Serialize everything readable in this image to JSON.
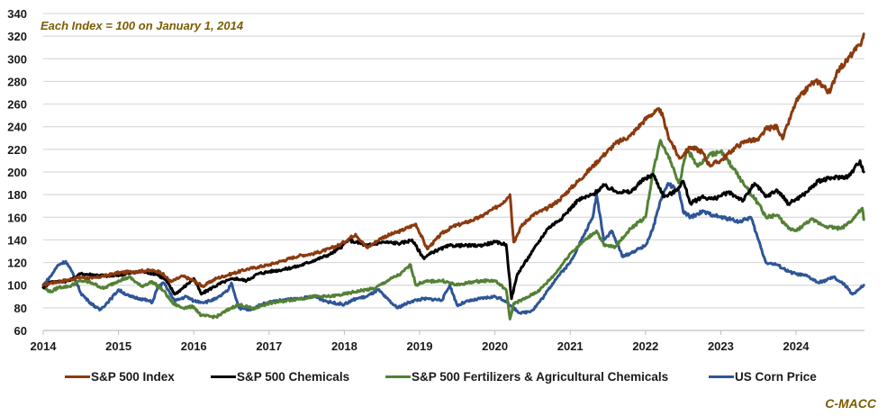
{
  "chart_data": {
    "type": "line",
    "title": "",
    "annotation": "Each Index = 100 on January 1, 2014",
    "source_label": "C-MACC",
    "xlabel": "",
    "ylabel": "",
    "ylim": [
      60,
      340
    ],
    "yticks": [
      60,
      80,
      100,
      120,
      140,
      160,
      180,
      200,
      220,
      240,
      260,
      280,
      300,
      320,
      340
    ],
    "xlim": [
      2014.0,
      2024.9
    ],
    "xticks": [
      "2014",
      "2015",
      "2016",
      "2017",
      "2018",
      "2019",
      "2020",
      "2021",
      "2022",
      "2023",
      "2024"
    ],
    "grid": "horizontal",
    "legend_position": "bottom",
    "series": [
      {
        "name": "S&P 500 Index",
        "color": "#8B3A0F",
        "x": [
          2014.0,
          2014.1,
          2014.2,
          2014.35,
          2014.5,
          2014.65,
          2014.8,
          2015.0,
          2015.2,
          2015.4,
          2015.55,
          2015.7,
          2015.85,
          2016.0,
          2016.12,
          2016.3,
          2016.5,
          2016.7,
          2016.85,
          2017.0,
          2017.2,
          2017.4,
          2017.6,
          2017.8,
          2017.95,
          2018.08,
          2018.15,
          2018.3,
          2018.5,
          2018.75,
          2018.95,
          2019.1,
          2019.3,
          2019.45,
          2019.6,
          2019.8,
          2020.0,
          2020.12,
          2020.2,
          2020.25,
          2020.35,
          2020.5,
          2020.7,
          2020.85,
          2021.0,
          2021.2,
          2021.4,
          2021.6,
          2021.8,
          2021.95,
          2022.05,
          2022.2,
          2022.3,
          2022.45,
          2022.6,
          2022.75,
          2022.85,
          2023.0,
          2023.2,
          2023.35,
          2023.5,
          2023.6,
          2023.75,
          2023.82,
          2024.0,
          2024.2,
          2024.3,
          2024.45,
          2024.55,
          2024.65,
          2024.75,
          2024.85,
          2024.9
        ],
        "values": [
          100,
          102,
          103,
          105,
          107,
          106,
          108,
          111,
          112,
          113,
          112,
          103,
          108,
          104,
          99,
          106,
          110,
          114,
          116,
          118,
          122,
          126,
          128,
          132,
          136,
          142,
          145,
          133,
          142,
          148,
          154,
          132,
          146,
          152,
          155,
          160,
          168,
          174,
          180,
          138,
          152,
          162,
          168,
          175,
          185,
          198,
          212,
          225,
          232,
          243,
          250,
          255,
          232,
          212,
          222,
          218,
          206,
          210,
          222,
          228,
          228,
          238,
          240,
          229,
          262,
          278,
          280,
          270,
          290,
          296,
          305,
          312,
          322
        ]
      },
      {
        "name": "S&P 500 Chemicals",
        "color": "#000000",
        "x": [
          2014.0,
          2014.1,
          2014.2,
          2014.35,
          2014.5,
          2014.7,
          2014.9,
          2015.1,
          2015.3,
          2015.5,
          2015.62,
          2015.75,
          2015.9,
          2016.0,
          2016.1,
          2016.25,
          2016.4,
          2016.55,
          2016.7,
          2016.85,
          2017.0,
          2017.2,
          2017.4,
          2017.6,
          2017.8,
          2017.95,
          2018.05,
          2018.15,
          2018.3,
          2018.5,
          2018.75,
          2018.9,
          2019.05,
          2019.2,
          2019.4,
          2019.6,
          2019.8,
          2020.0,
          2020.15,
          2020.22,
          2020.3,
          2020.5,
          2020.7,
          2020.9,
          2021.1,
          2021.3,
          2021.45,
          2021.6,
          2021.8,
          2021.95,
          2022.1,
          2022.25,
          2022.4,
          2022.5,
          2022.6,
          2022.75,
          2022.9,
          2023.1,
          2023.3,
          2023.45,
          2023.6,
          2023.75,
          2023.9,
          2024.1,
          2024.3,
          2024.5,
          2024.7,
          2024.85,
          2024.9
        ],
        "values": [
          98,
          103,
          103,
          104,
          110,
          109,
          108,
          110,
          112,
          110,
          105,
          92,
          100,
          106,
          92,
          98,
          103,
          106,
          104,
          110,
          112,
          114,
          117,
          122,
          127,
          133,
          140,
          138,
          135,
          138,
          137,
          140,
          124,
          130,
          135,
          135,
          135,
          138,
          136,
          88,
          110,
          130,
          150,
          160,
          175,
          180,
          188,
          183,
          182,
          192,
          198,
          178,
          183,
          192,
          172,
          178,
          176,
          182,
          175,
          190,
          178,
          184,
          172,
          180,
          192,
          195,
          196,
          210,
          200
        ]
      },
      {
        "name": "S&P 500 Fertilizers & Agricultural Chemicals",
        "color": "#538135",
        "x": [
          2014.0,
          2014.1,
          2014.2,
          2014.35,
          2014.5,
          2014.65,
          2014.8,
          2015.0,
          2015.15,
          2015.3,
          2015.45,
          2015.6,
          2015.72,
          2015.85,
          2016.0,
          2016.1,
          2016.3,
          2016.5,
          2016.6,
          2016.8,
          2016.9,
          2017.0,
          2017.2,
          2017.4,
          2017.6,
          2017.8,
          2018.0,
          2018.2,
          2018.4,
          2018.6,
          2018.75,
          2018.88,
          2018.95,
          2019.05,
          2019.3,
          2019.5,
          2019.7,
          2019.9,
          2020.0,
          2020.15,
          2020.2,
          2020.25,
          2020.4,
          2020.6,
          2020.8,
          2021.0,
          2021.2,
          2021.35,
          2021.45,
          2021.6,
          2021.8,
          2022.0,
          2022.1,
          2022.2,
          2022.3,
          2022.45,
          2022.55,
          2022.7,
          2022.85,
          2023.0,
          2023.15,
          2023.3,
          2023.5,
          2023.6,
          2023.75,
          2023.9,
          2024.0,
          2024.2,
          2024.4,
          2024.6,
          2024.75,
          2024.88,
          2024.9
        ],
        "values": [
          98,
          94,
          98,
          99,
          104,
          102,
          97,
          104,
          107,
          99,
          103,
          95,
          84,
          80,
          81,
          73,
          72,
          80,
          83,
          79,
          82,
          84,
          86,
          88,
          90,
          90,
          92,
          95,
          97,
          105,
          110,
          118,
          100,
          103,
          104,
          100,
          103,
          104,
          104,
          96,
          70,
          84,
          88,
          96,
          110,
          128,
          140,
          148,
          135,
          134,
          150,
          160,
          200,
          228,
          215,
          190,
          220,
          205,
          215,
          218,
          205,
          190,
          172,
          160,
          162,
          150,
          148,
          158,
          152,
          150,
          158,
          168,
          158
        ]
      },
      {
        "name": "US Corn Price",
        "color": "#2F5597",
        "x": [
          2014.0,
          2014.1,
          2014.2,
          2014.3,
          2014.38,
          2014.5,
          2014.6,
          2014.75,
          2014.9,
          2015.0,
          2015.15,
          2015.3,
          2015.45,
          2015.52,
          2015.6,
          2015.75,
          2015.9,
          2016.0,
          2016.15,
          2016.3,
          2016.45,
          2016.5,
          2016.6,
          2016.75,
          2016.9,
          2017.0,
          2017.2,
          2017.4,
          2017.6,
          2017.8,
          2018.0,
          2018.15,
          2018.3,
          2018.45,
          2018.55,
          2018.7,
          2018.9,
          2019.05,
          2019.3,
          2019.4,
          2019.5,
          2019.6,
          2019.8,
          2020.0,
          2020.15,
          2020.2,
          2020.35,
          2020.5,
          2020.65,
          2020.8,
          2021.0,
          2021.15,
          2021.3,
          2021.35,
          2021.45,
          2021.55,
          2021.7,
          2021.85,
          2022.0,
          2022.1,
          2022.2,
          2022.3,
          2022.45,
          2022.5,
          2022.6,
          2022.75,
          2022.9,
          2023.0,
          2023.15,
          2023.25,
          2023.4,
          2023.5,
          2023.6,
          2023.75,
          2023.9,
          2024.0,
          2024.15,
          2024.3,
          2024.5,
          2024.65,
          2024.75,
          2024.85,
          2024.9
        ],
        "values": [
          100,
          108,
          118,
          121,
          112,
          93,
          86,
          78,
          88,
          96,
          90,
          88,
          85,
          98,
          102,
          86,
          90,
          86,
          85,
          88,
          95,
          102,
          80,
          78,
          83,
          85,
          87,
          88,
          90,
          85,
          83,
          88,
          90,
          96,
          89,
          80,
          86,
          88,
          87,
          100,
          82,
          85,
          88,
          90,
          86,
          82,
          75,
          78,
          90,
          105,
          120,
          140,
          160,
          180,
          140,
          148,
          125,
          130,
          135,
          150,
          175,
          190,
          182,
          165,
          160,
          165,
          162,
          160,
          158,
          156,
          160,
          140,
          120,
          118,
          112,
          110,
          108,
          102,
          107,
          100,
          92,
          97,
          100
        ]
      }
    ]
  },
  "legend": [
    {
      "label": "S&P 500 Index",
      "color": "#8B3A0F"
    },
    {
      "label": "S&P 500 Chemicals",
      "color": "#000000"
    },
    {
      "label": "S&P 500 Fertilizers & Agricultural Chemicals",
      "color": "#538135"
    },
    {
      "label": "US Corn Price",
      "color": "#2F5597"
    }
  ]
}
